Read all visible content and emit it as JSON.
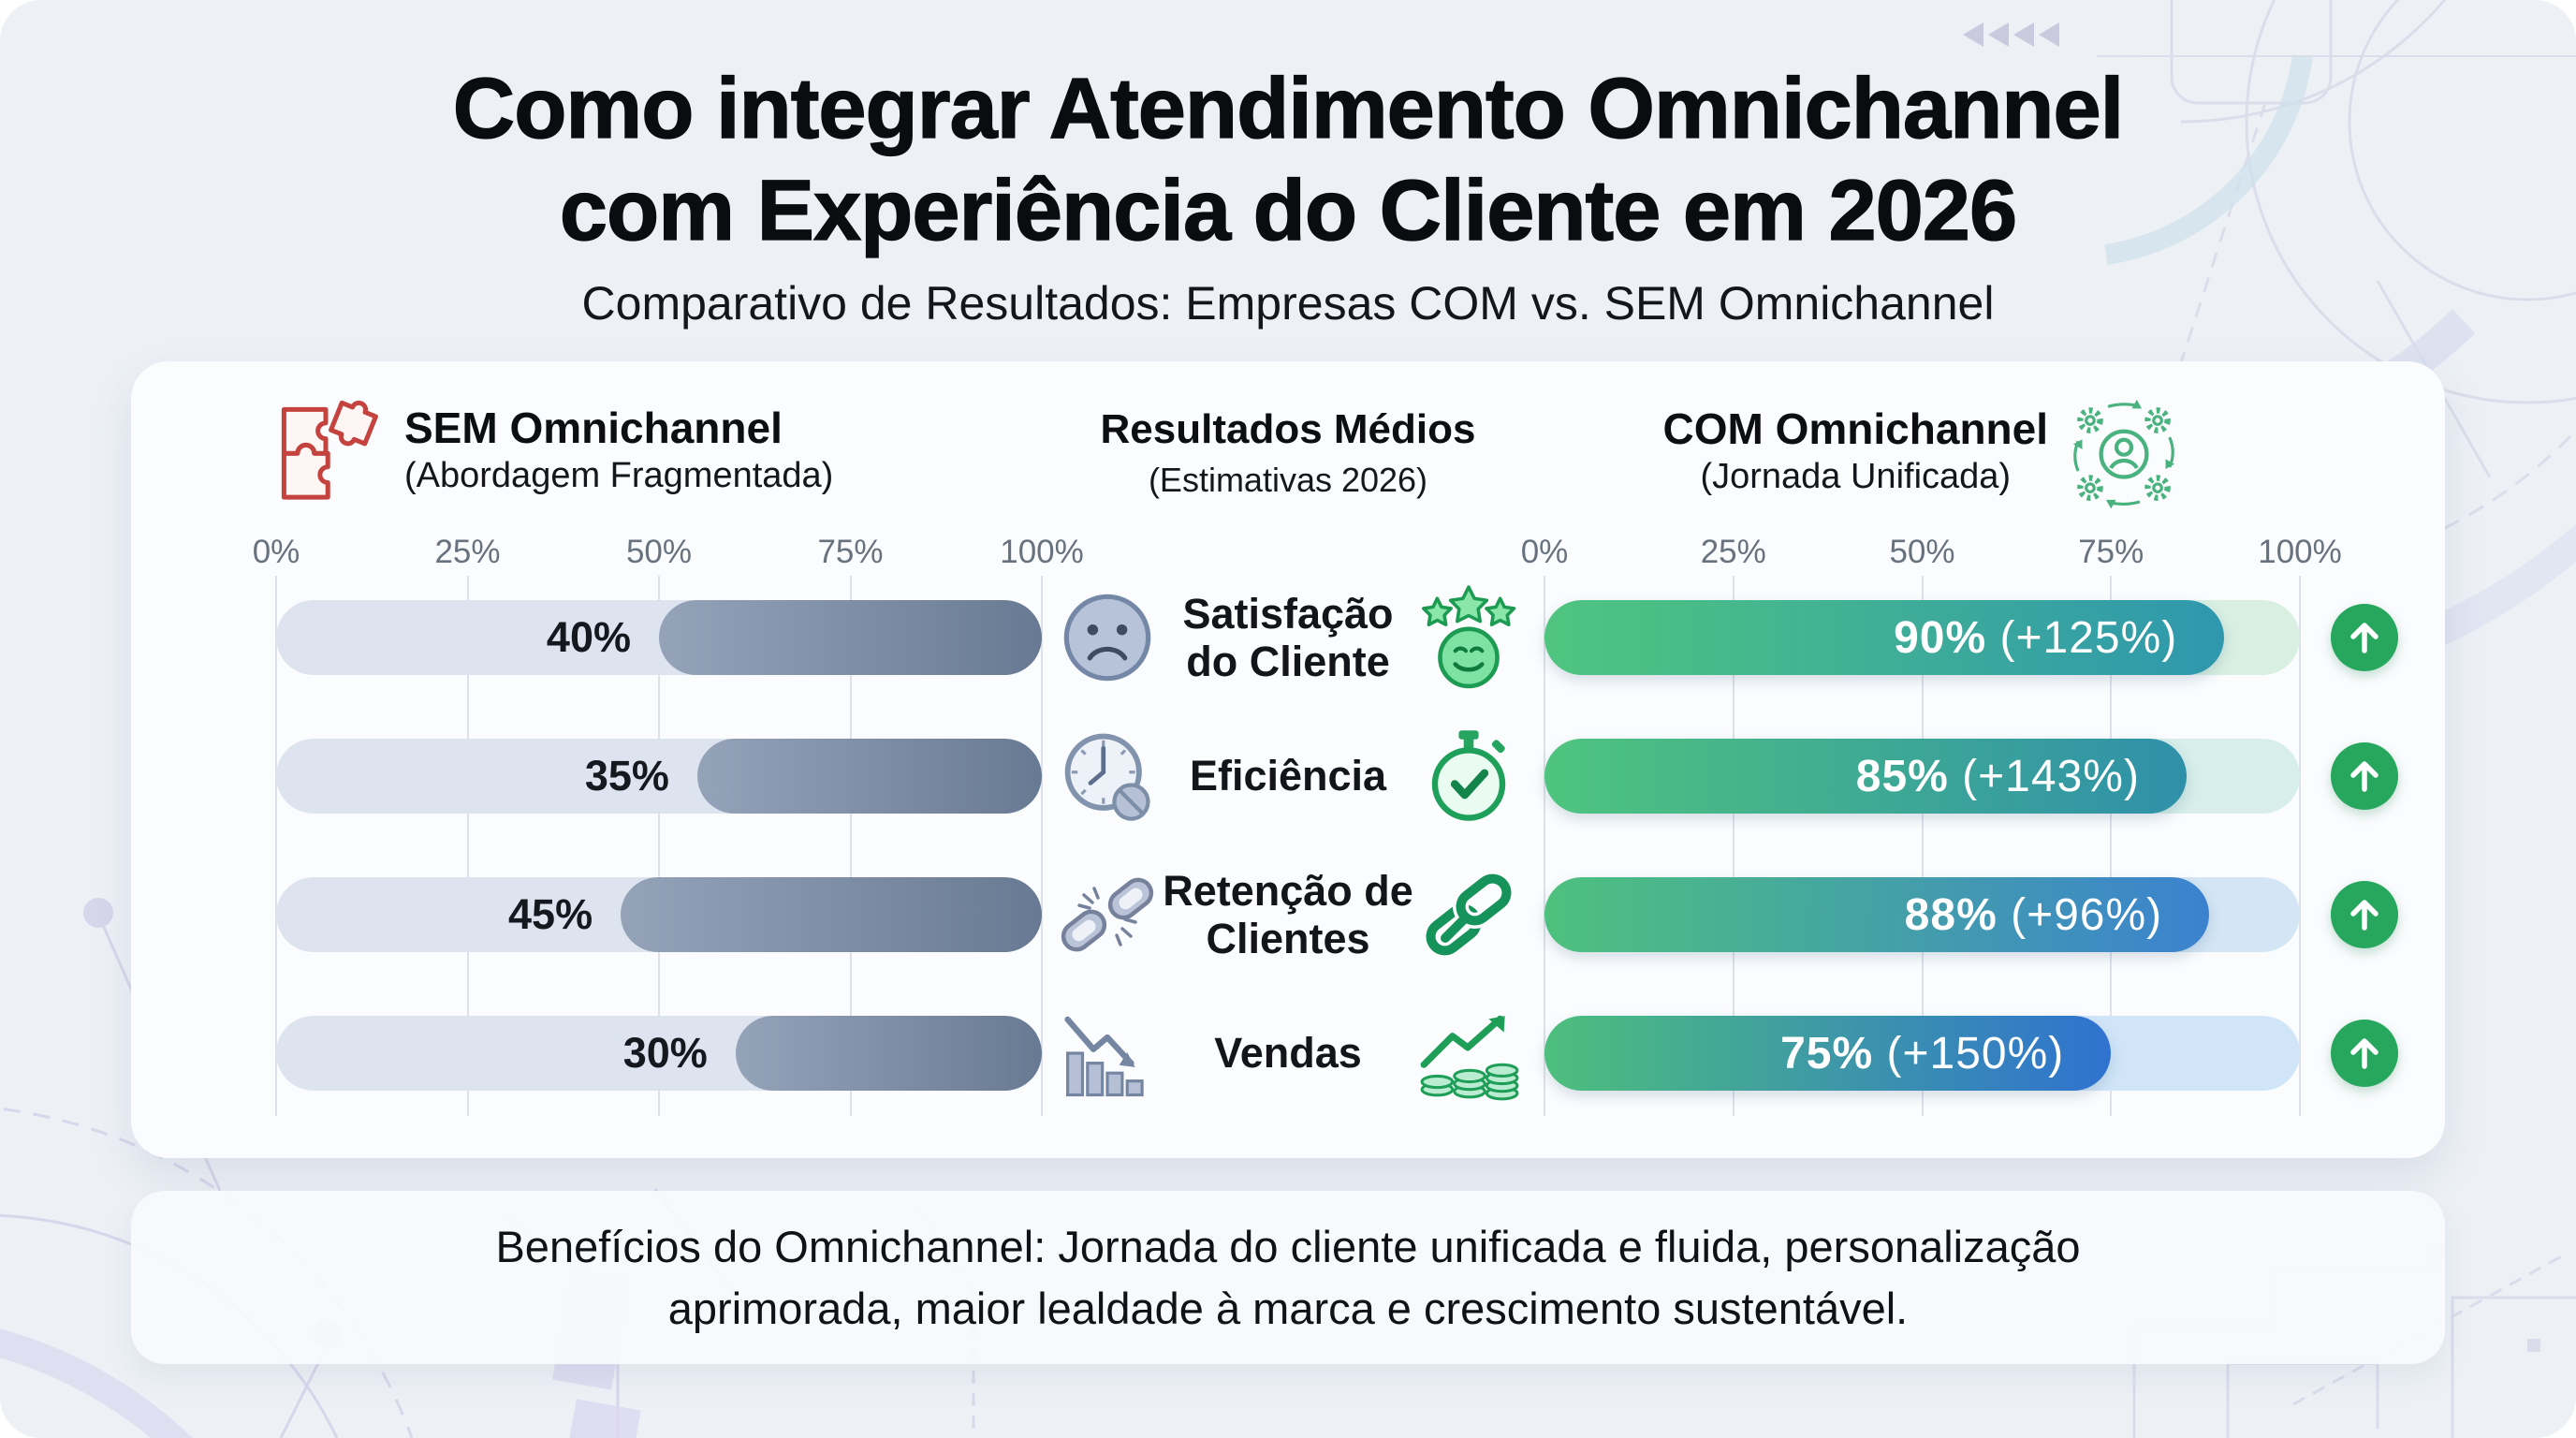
{
  "title": "Como integrar Atendimento Omnichannel\ncom Experiência do Cliente em 2026",
  "subtitle": "Comparativo de Resultados: Empresas COM vs. SEM Omnichannel",
  "panels": {
    "sem": {
      "title": "SEM Omnichannel",
      "subtitle": "(Abordagem Fragmentada)",
      "icon": "puzzle-icon",
      "accent": "#c4433e"
    },
    "center": {
      "title": "Resultados Médios",
      "subtitle": "(Estimativas 2026)"
    },
    "com": {
      "title": "COM Omnichannel",
      "subtitle": "(Jornada Unificada)",
      "icon": "gears-people-icon",
      "accent": "#27a75e"
    }
  },
  "axis_ticks": [
    "0%",
    "25%",
    "50%",
    "75%",
    "100%"
  ],
  "rows": [
    {
      "metric": "Satisfação\ndo Cliente",
      "bad_icon": "sad-face-icon",
      "good_icon": "smiley-stars-icon",
      "sem_label": "40%",
      "com_label": "90%",
      "com_delta": "(+125%)",
      "sem_value": 40,
      "com_value": 90,
      "com_gradient": [
        "#50c57f",
        "#2f97ae"
      ],
      "com_track": "#d9efe2"
    },
    {
      "metric": "Eficiência",
      "bad_icon": "clock-slow-icon",
      "good_icon": "stopwatch-check-icon",
      "sem_label": "35%",
      "com_label": "85%",
      "com_delta": "(+143%)",
      "sem_value": 35,
      "com_value": 85,
      "com_gradient": [
        "#4fc47e",
        "#2f90a9"
      ],
      "com_track": "#d7eeea"
    },
    {
      "metric": "Retenção de\nClientes",
      "bad_icon": "broken-link-icon",
      "good_icon": "chain-link-icon",
      "sem_label": "45%",
      "com_label": "88%",
      "com_delta": "(+96%)",
      "sem_value": 45,
      "com_value": 88,
      "com_gradient": [
        "#4ec17d",
        "#3b82cf"
      ],
      "com_track": "#d4e6f5"
    },
    {
      "metric": "Vendas",
      "bad_icon": "sales-down-icon",
      "good_icon": "sales-up-coins-icon",
      "sem_label": "30%",
      "com_label": "75%",
      "com_delta": "(+150%)",
      "sem_value": 30,
      "com_value": 75,
      "com_gradient": [
        "#4dbf7c",
        "#2f72d0"
      ],
      "com_track": "#d1e5f8"
    }
  ],
  "benefits": "Benefícios do Omnichannel: Jornada do cliente unificada e fluida, personalização aprimorada, maior lealdade à marca e crescimento sustentável.",
  "chart_data": {
    "type": "bar",
    "orientation": "horizontal",
    "categories": [
      "Satisfação do Cliente",
      "Eficiência",
      "Retenção de Clientes",
      "Vendas"
    ],
    "series": [
      {
        "name": "SEM Omnichannel (Abordagem Fragmentada)",
        "values": [
          40,
          35,
          45,
          30
        ]
      },
      {
        "name": "COM Omnichannel (Jornada Unificada)",
        "values": [
          90,
          85,
          88,
          75
        ]
      }
    ],
    "deltas": [
      "+125%",
      "+143%",
      "+96%",
      "+150%"
    ],
    "title": "Como integrar Atendimento Omnichannel com Experiência do Cliente em 2026",
    "subtitle": "Comparativo de Resultados: Empresas COM vs. SEM Omnichannel",
    "xlim": [
      0,
      100
    ],
    "tick_labels": [
      "0%",
      "25%",
      "50%",
      "75%",
      "100%"
    ],
    "grid": true,
    "legend_position": "column-headers"
  }
}
